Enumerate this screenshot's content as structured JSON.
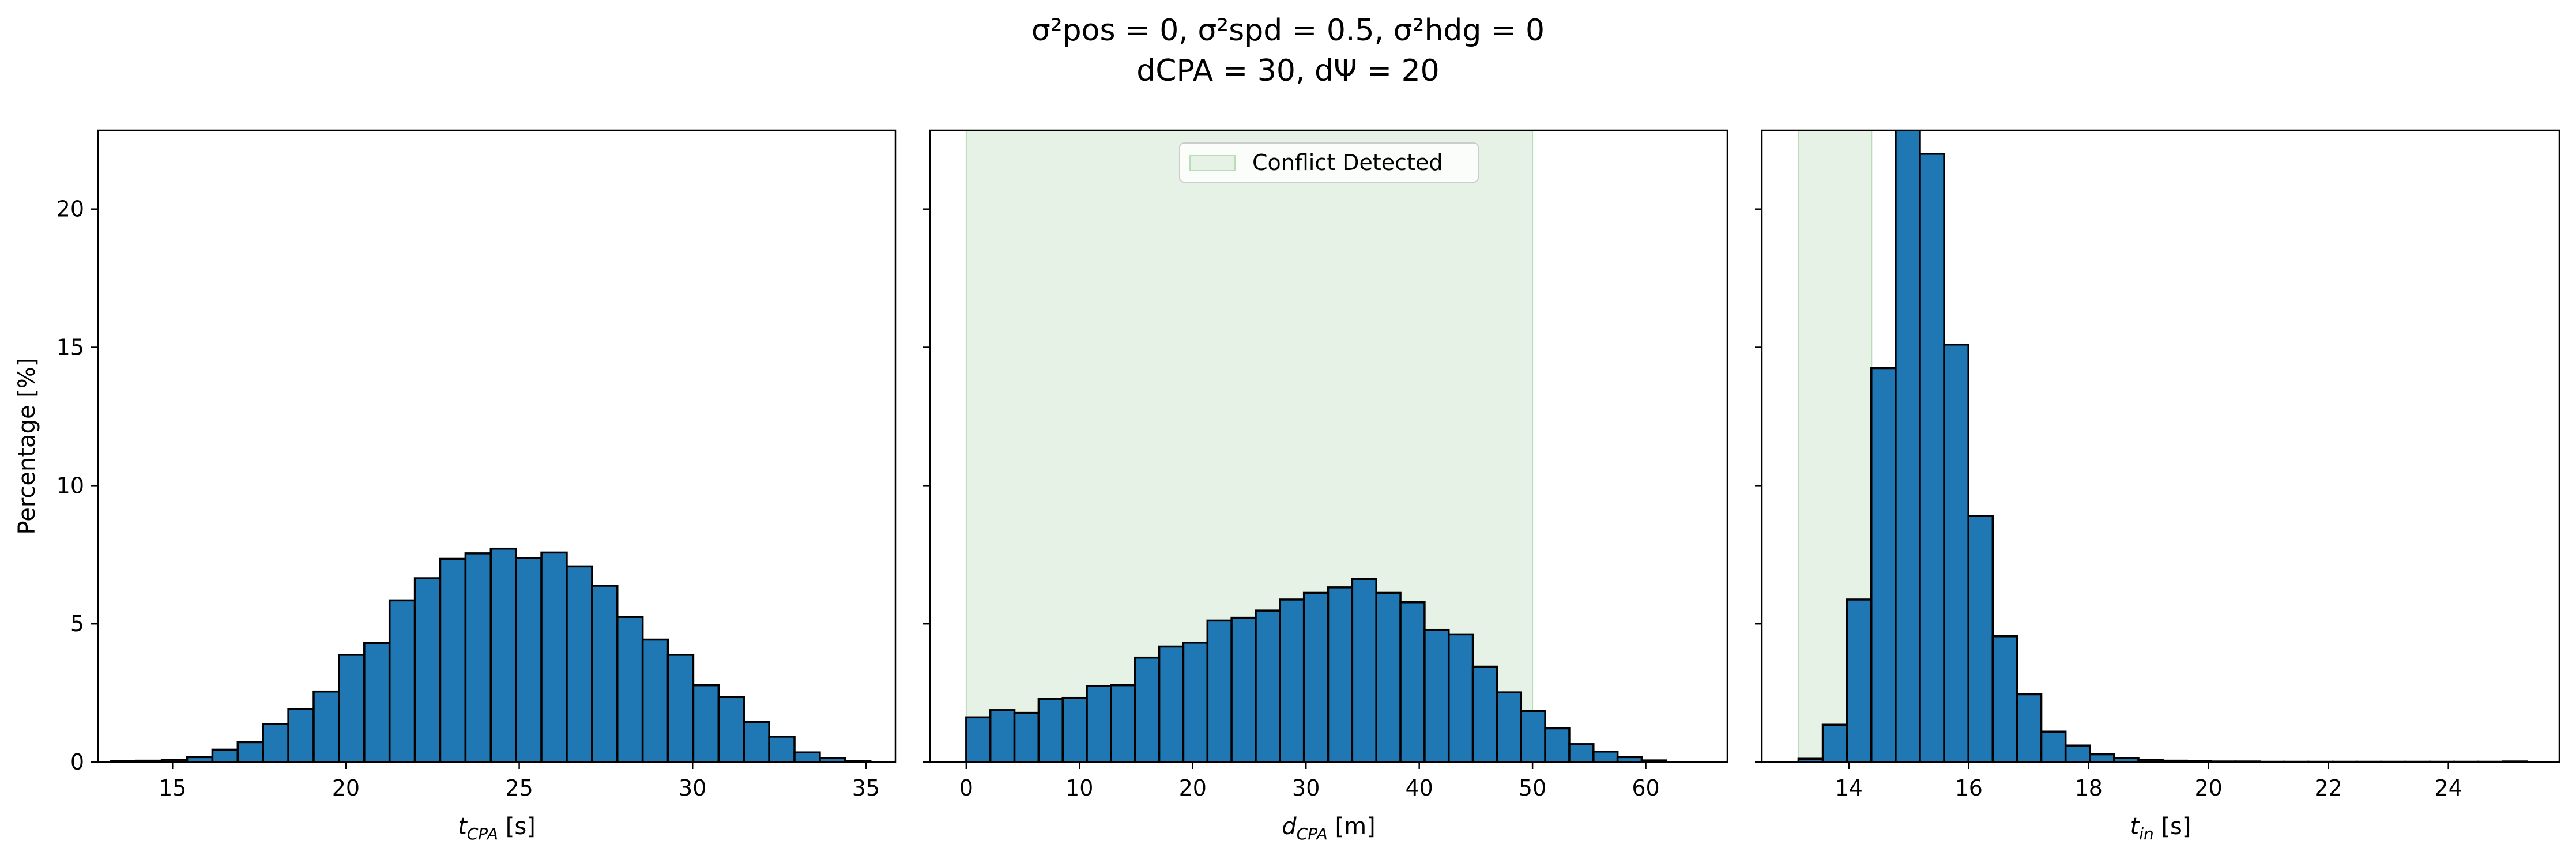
{
  "figure": {
    "title_line1": "σ²pos = 0, σ²spd = 0.5, σ²hdg = 0",
    "title_line2": "dCPA = 30, dΨ = 20"
  },
  "colors": {
    "bar_fill": "#1f77b4",
    "bar_edge": "#000000",
    "span_fill": "#e5f2e5",
    "span_edge": "#b9ddb9"
  },
  "chart_data": [
    {
      "type": "bar",
      "title": "",
      "xlabel": "tCPA [s]",
      "xlabel_main": "t",
      "xlabel_sub": "CPA",
      "xlabel_unit": " [s]",
      "ylabel": "Percentage [%]",
      "xlim": [
        12.85,
        35.85
      ],
      "ylim": [
        0,
        22.85
      ],
      "xticks": [
        15,
        20,
        25,
        30,
        35
      ],
      "yticks": [
        0,
        5,
        10,
        15,
        20
      ],
      "grid": false,
      "bin_edges_start": 13.23,
      "bin_width": 0.73,
      "values": [
        0.03,
        0.05,
        0.08,
        0.18,
        0.45,
        0.72,
        1.38,
        1.92,
        2.55,
        3.88,
        4.3,
        5.85,
        6.65,
        7.35,
        7.55,
        7.72,
        7.38,
        7.58,
        7.08,
        6.38,
        5.25,
        4.43,
        3.88,
        2.78,
        2.35,
        1.45,
        0.92,
        0.35,
        0.15,
        0.04
      ]
    },
    {
      "type": "bar",
      "title": "",
      "xlabel": "dCPA [m]",
      "xlabel_main": "d",
      "xlabel_sub": "CPA",
      "xlabel_unit": " [m]",
      "xlim": [
        -3.2,
        67.2
      ],
      "ylim": [
        0,
        22.85
      ],
      "xticks": [
        0,
        10,
        20,
        30,
        40,
        50,
        60
      ],
      "yticks": [
        0,
        5,
        10,
        15,
        20
      ],
      "grid": false,
      "bin_edges_start": 0,
      "bin_width": 2.13,
      "values": [
        1.62,
        1.88,
        1.78,
        2.28,
        2.32,
        2.75,
        2.78,
        3.78,
        4.18,
        4.32,
        5.12,
        5.22,
        5.48,
        5.88,
        6.12,
        6.32,
        6.62,
        6.12,
        5.78,
        4.78,
        4.62,
        3.45,
        2.52,
        1.85,
        1.22,
        0.65,
        0.38,
        0.18,
        0.06
      ],
      "shaded_region": [
        0,
        50
      ],
      "legend": {
        "label": "Conflict Detected",
        "position": "upper center"
      }
    },
    {
      "type": "bar",
      "title": "",
      "xlabel": "tin [s]",
      "xlabel_main": "t",
      "xlabel_sub": "in",
      "xlabel_unit": " [s]",
      "xlim": [
        12.55,
        25.85
      ],
      "ylim": [
        0,
        22.85
      ],
      "xticks": [
        14,
        16,
        18,
        20,
        22,
        24
      ],
      "yticks": [
        0,
        5,
        10,
        15,
        20
      ],
      "grid": false,
      "bin_edges_start": 13.16,
      "bin_width": 0.405,
      "values": [
        0.12,
        1.35,
        5.88,
        14.25,
        23.0,
        22.0,
        15.1,
        8.9,
        4.55,
        2.45,
        1.1,
        0.6,
        0.28,
        0.15,
        0.08,
        0.05,
        0.03,
        0.02,
        0.02,
        0.01,
        0.01,
        0.01,
        0.01,
        0.01,
        0.01,
        0.01,
        0.01,
        0.01,
        0.01,
        0.02
      ],
      "shaded_region": [
        13.16,
        14.38
      ]
    }
  ]
}
